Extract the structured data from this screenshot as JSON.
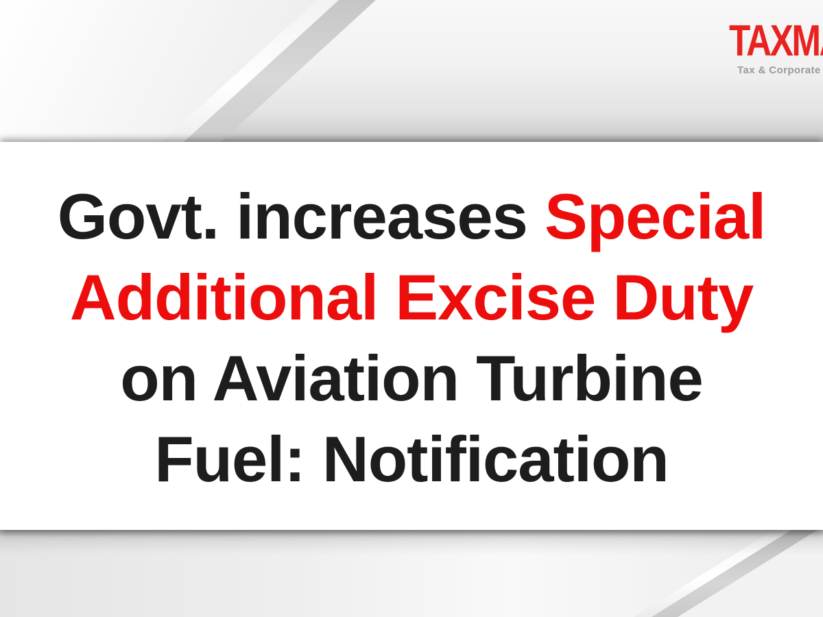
{
  "colors": {
    "headline-black": "#1d1d1d",
    "headline-red": "#ee0d0d",
    "brand-red": "#e8231f",
    "tagline-gray": "#9a9a9a",
    "card-bg": "#ffffff"
  },
  "brand": {
    "name": "TAXMANN",
    "tagline": "Tax & Corporate"
  },
  "headline": {
    "lines": [
      {
        "black_part": "Govt. increases ",
        "red_part": "Special"
      },
      {
        "red_part": "Additional Excise Duty"
      },
      {
        "black_part": "on Aviation Turbine"
      },
      {
        "black_part": "Fuel: Notification"
      }
    ]
  }
}
